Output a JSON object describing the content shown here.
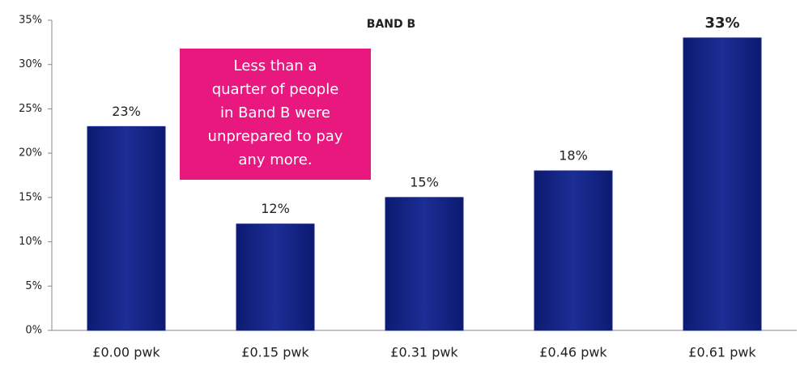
{
  "chart_data": {
    "type": "bar",
    "title": "BAND B",
    "categories": [
      "£0.00 pwk",
      "£0.15 pwk",
      "£0.31 pwk",
      "£0.46 pwk",
      "£0.61 pwk"
    ],
    "values": [
      23,
      12,
      15,
      18,
      33
    ],
    "value_labels": [
      "23%",
      "12%",
      "15%",
      "18%",
      "33%"
    ],
    "color": "#13238a",
    "ylim": [
      0,
      35
    ],
    "yticks": [
      {
        "value": 0,
        "label": "0%"
      },
      {
        "value": 5,
        "label": "5%"
      },
      {
        "value": 10,
        "label": "10%"
      },
      {
        "value": 15,
        "label": "15%"
      },
      {
        "value": 20,
        "label": "20%"
      },
      {
        "value": 25,
        "label": "25%"
      },
      {
        "value": 30,
        "label": "30%"
      },
      {
        "value": 35,
        "label": "35%"
      }
    ],
    "annotation": {
      "lines": [
        "Less than a",
        "quarter of people",
        "in Band B were",
        "unprepared to pay",
        "any more."
      ],
      "color": "#e8187f"
    }
  }
}
